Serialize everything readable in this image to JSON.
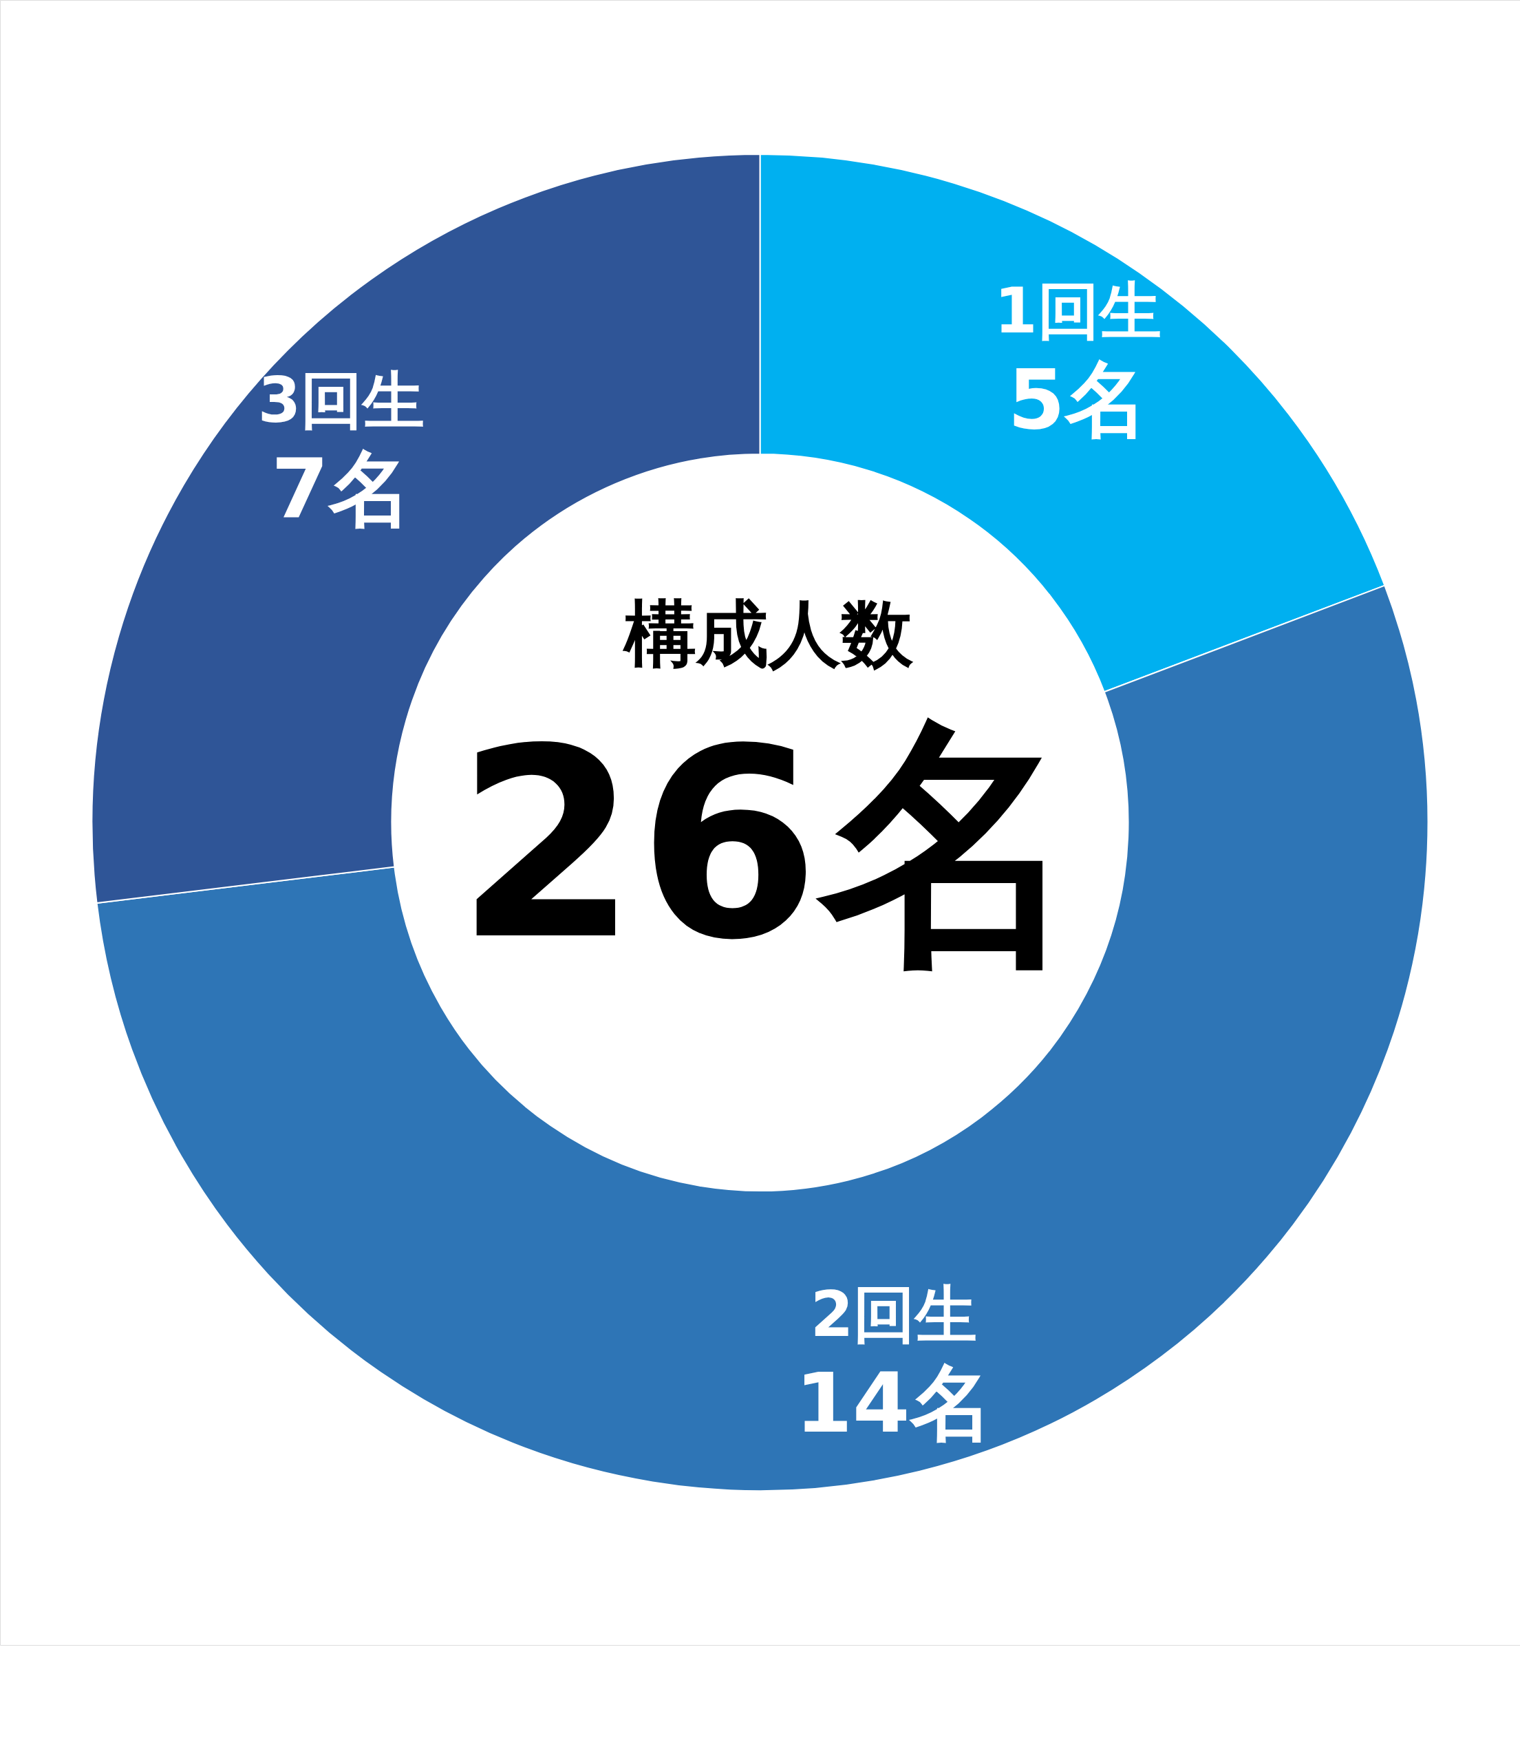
{
  "chart_data": {
    "type": "donut",
    "categories": [
      "1回生",
      "2回生",
      "3回生"
    ],
    "values": [
      5,
      14,
      7
    ],
    "value_labels": [
      "5名",
      "14名",
      "7名"
    ],
    "colors": [
      "#00b0f0",
      "#2e75b6",
      "#2f5597"
    ],
    "annotations": [
      "構成人数",
      "26名"
    ]
  }
}
